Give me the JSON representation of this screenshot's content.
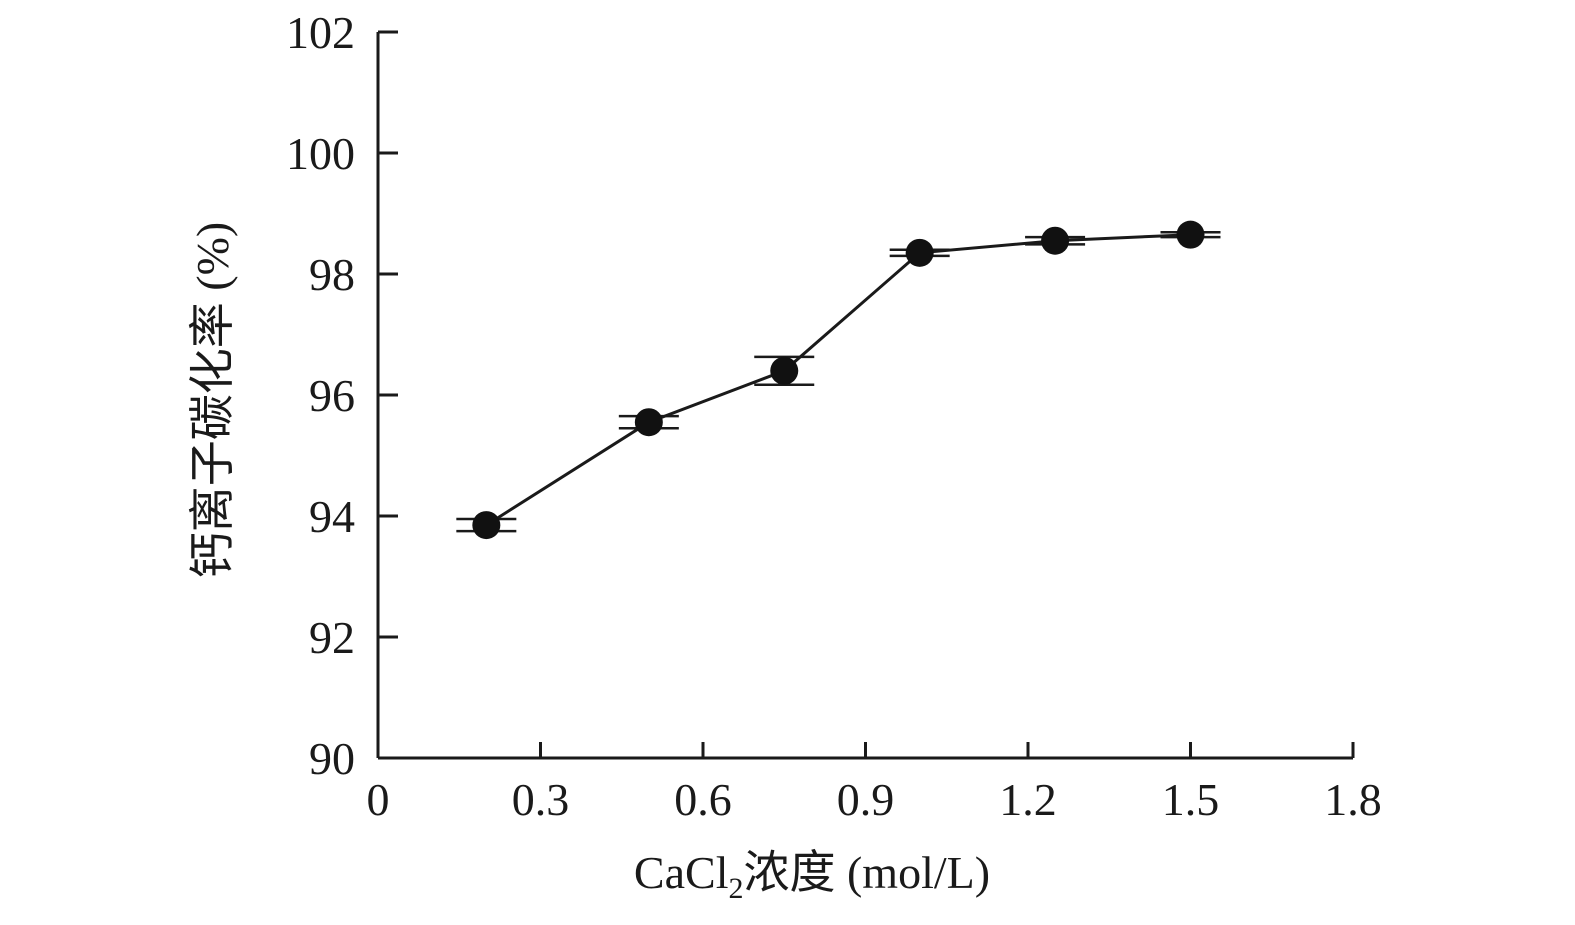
{
  "chart_data": {
    "type": "line",
    "xlabel": {
      "prefix": "CaCl",
      "subscript": "2",
      "suffix": "浓度 (mol/L)"
    },
    "ylabel": "钙离子碳化率 (%)",
    "xlim": [
      0,
      1.8
    ],
    "ylim": [
      90,
      102
    ],
    "xticks": [
      0,
      0.3,
      0.6,
      0.9,
      1.2,
      1.5,
      1.8
    ],
    "xtick_labels": [
      "0",
      "0.3",
      "0.6",
      "0.9",
      "1.2",
      "1.5",
      "1.8"
    ],
    "yticks": [
      90,
      92,
      94,
      96,
      98,
      100,
      102
    ],
    "ytick_labels": [
      "90",
      "92",
      "94",
      "96",
      "98",
      "100",
      "102"
    ],
    "grid": false,
    "series": [
      {
        "x": [
          0.2,
          0.5,
          0.75,
          1.0,
          1.25,
          1.5
        ],
        "y": [
          93.85,
          95.55,
          96.4,
          98.35,
          98.55,
          98.65
        ],
        "error": [
          0.1,
          0.1,
          0.23,
          0.05,
          0.06,
          0.04
        ]
      }
    ],
    "colors": {
      "line": "#1a1a1a",
      "marker": "#111111"
    }
  }
}
